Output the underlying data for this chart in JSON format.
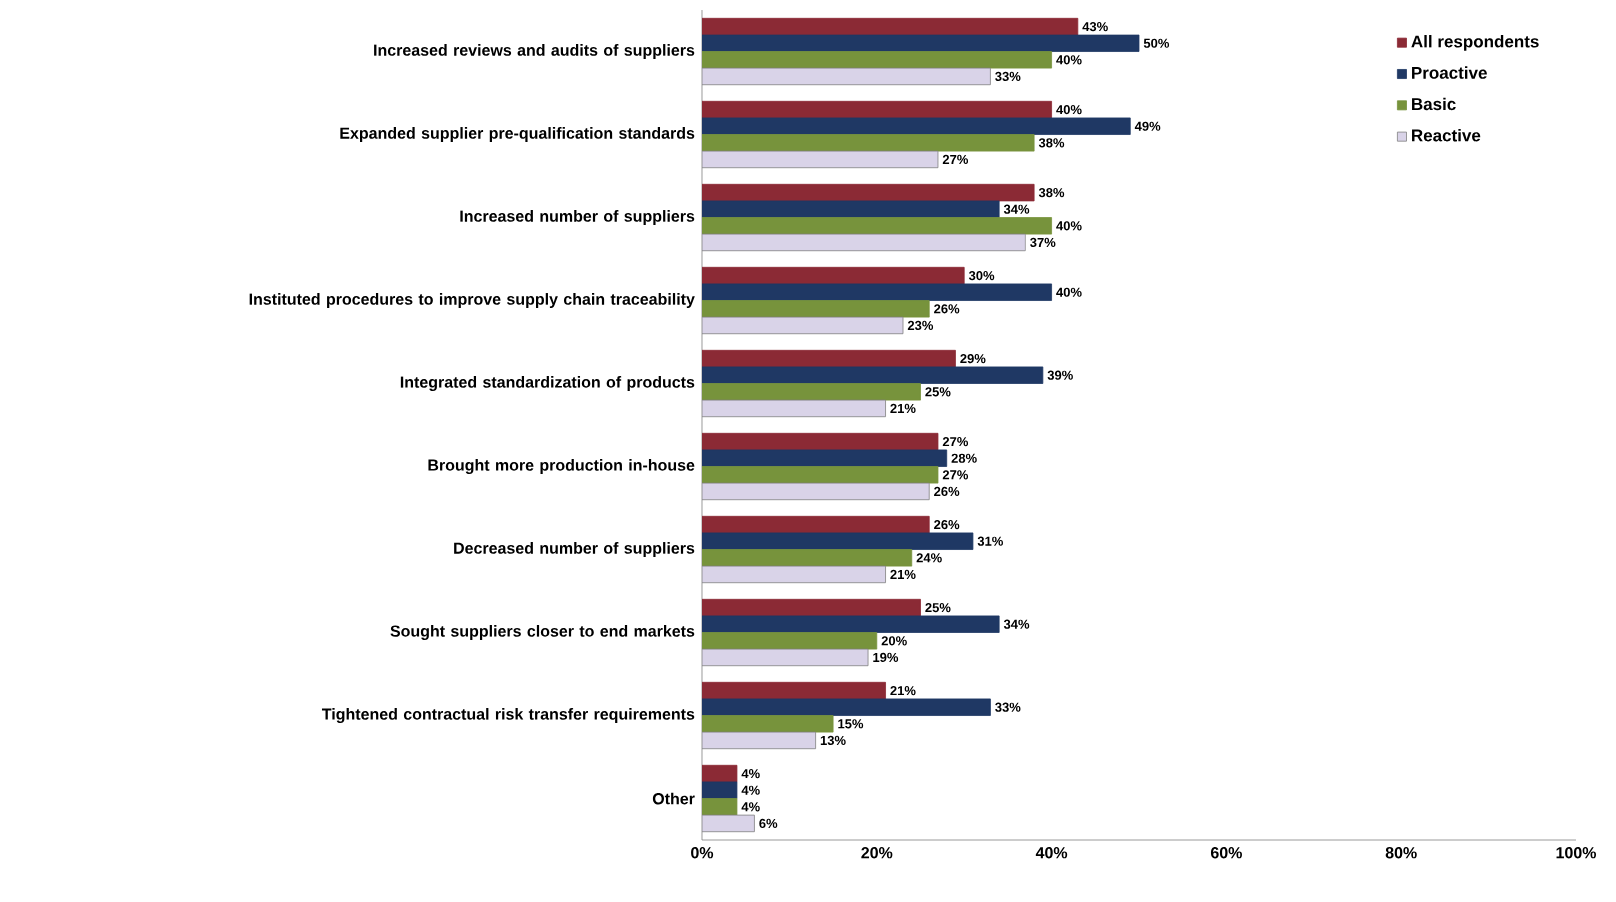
{
  "chart_data": {
    "type": "bar",
    "orientation": "horizontal",
    "categories": [
      "Increased reviews and audits of suppliers",
      "Expanded supplier pre-qualification standards",
      "Increased number of suppliers",
      "Instituted procedures to improve supply chain traceability",
      "Integrated standardization of products",
      "Brought more production in-house",
      "Decreased number of suppliers",
      "Sought suppliers closer to end markets",
      "Tightened contractual risk transfer requirements",
      "Other"
    ],
    "series": [
      {
        "name": "All respondents",
        "color": "#8b2a35",
        "values": [
          43,
          40,
          38,
          30,
          29,
          27,
          26,
          25,
          21,
          4
        ],
        "value_labels": [
          "43%",
          "40%",
          "38%",
          "30%",
          "29%",
          "27%",
          "26%",
          "25%",
          "21%",
          "4%"
        ]
      },
      {
        "name": "Proactive",
        "color": "#1f3864",
        "values": [
          50,
          49,
          34,
          40,
          39,
          28,
          31,
          34,
          33,
          4
        ],
        "value_labels": [
          "50%",
          "49%",
          "34%",
          "40%",
          "39%",
          "28%",
          "31%",
          "34%",
          "33%",
          "4%"
        ]
      },
      {
        "name": "Basic",
        "color": "#77933c",
        "values": [
          40,
          38,
          40,
          26,
          25,
          27,
          24,
          20,
          15,
          4
        ],
        "value_labels": [
          "40%",
          "38%",
          "40%",
          "26%",
          "25%",
          "27%",
          "24%",
          "20%",
          "15%",
          "4%"
        ]
      },
      {
        "name": "Reactive",
        "color": "#d9d3e8",
        "values": [
          33,
          27,
          37,
          23,
          21,
          26,
          21,
          19,
          13,
          6
        ],
        "value_labels": [
          "33%",
          "27%",
          "37%",
          "23%",
          "21%",
          "26%",
          "21%",
          "19%",
          "13%",
          "6%"
        ]
      }
    ],
    "xlim": [
      0,
      100
    ],
    "xticks": [
      {
        "value": 0,
        "label": "0%"
      },
      {
        "value": 20,
        "label": "20%"
      },
      {
        "value": 40,
        "label": "40%"
      },
      {
        "value": 60,
        "label": "60%"
      },
      {
        "value": 80,
        "label": "80%"
      },
      {
        "value": 100,
        "label": "100%"
      }
    ],
    "legend": "top right",
    "grid": false
  }
}
